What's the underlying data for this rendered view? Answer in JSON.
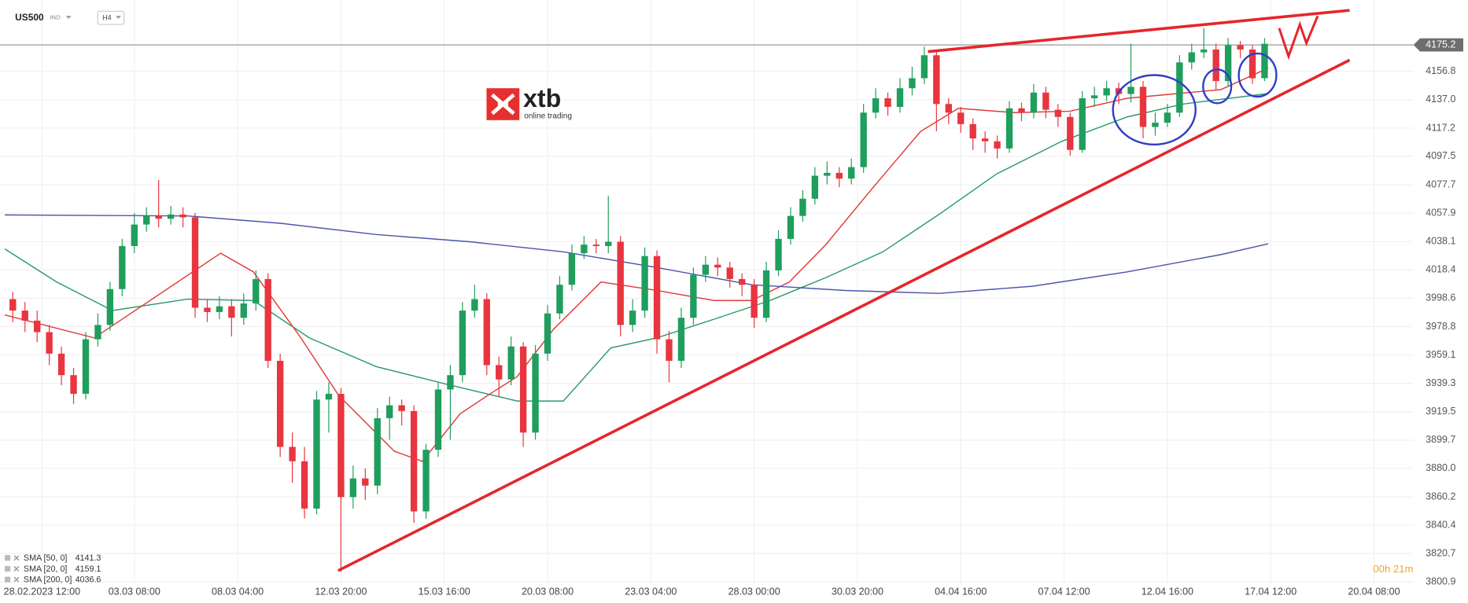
{
  "chart_data": {
    "type": "candlestick",
    "symbol": "US500",
    "market": "IND",
    "interval": "H4",
    "logo": "xtb",
    "logo_tagline": "online trading",
    "timer": "00h 21m",
    "current_price": 4175.2,
    "up_color": "#1f9e5d",
    "down_color": "#e8353f",
    "grid": true,
    "open": [
      3998,
      3990,
      3983,
      3975,
      3960,
      3945,
      3932,
      3970,
      3980,
      4005,
      4035,
      4050,
      4056,
      4054,
      4057,
      4055,
      3992,
      3989,
      3993,
      3985,
      3995,
      4012,
      3955,
      3895,
      3885,
      3852,
      3928,
      3932,
      3860,
      3873,
      3868,
      3915,
      3924,
      3920,
      3850,
      3893,
      3935,
      3945,
      3990,
      3998,
      3952,
      3942,
      3965,
      3905,
      3960,
      3988,
      4008,
      4030,
      4036,
      4035,
      4038,
      3980,
      3990,
      4028,
      3970,
      3955,
      3985,
      4015,
      4022,
      4020,
      4012,
      4008,
      3985,
      4018,
      4040,
      4056,
      4068,
      4084,
      4086,
      4082,
      4090,
      4128,
      4138,
      4132,
      4145,
      4152,
      4168,
      4134,
      4128,
      4120,
      4110,
      4108,
      4103,
      4131,
      4128,
      4142,
      4130,
      4125,
      4102,
      4138,
      4140,
      4145,
      4141,
      4146,
      4118,
      4121,
      4128,
      4163,
      4170,
      4172,
      4150,
      4175,
      4172,
      4152
    ],
    "high": [
      4003,
      3996,
      3990,
      3980,
      3965,
      3950,
      3975,
      3988,
      4010,
      4040,
      4058,
      4062,
      4081,
      4063,
      4062,
      4058,
      3998,
      4000,
      3998,
      4002,
      4018,
      4016,
      3960,
      3905,
      3895,
      3934,
      3940,
      3936,
      3882,
      3880,
      3922,
      3930,
      3928,
      3924,
      3897,
      3940,
      3952,
      3996,
      4008,
      4002,
      3958,
      3972,
      3968,
      3966,
      3994,
      4014,
      4036,
      4042,
      4040,
      4070,
      4042,
      3998,
      4034,
      4032,
      3976,
      3992,
      4020,
      4028,
      4027,
      4024,
      4016,
      4012,
      4024,
      4046,
      4062,
      4074,
      4090,
      4094,
      4090,
      4096,
      4134,
      4145,
      4142,
      4152,
      4160,
      4174,
      4171,
      4138,
      4132,
      4124,
      4115,
      4112,
      4136,
      4135,
      4148,
      4146,
      4134,
      4128,
      4143,
      4146,
      4150,
      4149,
      4176,
      4150,
      4128,
      4134,
      4168,
      4176,
      4187,
      4176,
      4180,
      4178,
      4175,
      4180
    ],
    "low": [
      3982,
      3975,
      3968,
      3952,
      3938,
      3925,
      3928,
      3965,
      3976,
      4000,
      4030,
      4045,
      4048,
      4050,
      4048,
      3985,
      3982,
      3984,
      3972,
      3980,
      3990,
      3950,
      3888,
      3870,
      3845,
      3848,
      3905,
      3808,
      3852,
      3858,
      3862,
      3900,
      3910,
      3842,
      3845,
      3888,
      3900,
      3940,
      3985,
      3945,
      3930,
      3938,
      3895,
      3900,
      3955,
      3984,
      4004,
      4026,
      4030,
      4030,
      3972,
      3975,
      3985,
      3960,
      3940,
      3950,
      3980,
      4010,
      4014,
      4006,
      4000,
      3978,
      3982,
      4014,
      4036,
      4052,
      4064,
      4078,
      4076,
      4078,
      4086,
      4124,
      4126,
      4128,
      4140,
      4148,
      4115,
      4120,
      4114,
      4102,
      4100,
      4096,
      4100,
      4122,
      4124,
      4124,
      4118,
      4098,
      4100,
      4132,
      4136,
      4134,
      4135,
      4110,
      4112,
      4118,
      4125,
      4158,
      4166,
      4144,
      4146,
      4166,
      4148,
      4150
    ],
    "close": [
      3990,
      3983,
      3975,
      3960,
      3945,
      3932,
      3970,
      3980,
      4005,
      4035,
      4050,
      4056,
      4054,
      4057,
      4055,
      3992,
      3989,
      3993,
      3985,
      3995,
      4012,
      3955,
      3895,
      3885,
      3852,
      3928,
      3932,
      3860,
      3873,
      3868,
      3915,
      3924,
      3920,
      3850,
      3893,
      3935,
      3945,
      3990,
      3998,
      3952,
      3942,
      3965,
      3905,
      3960,
      3988,
      4008,
      4030,
      4036,
      4035,
      4038,
      3980,
      3990,
      4028,
      3970,
      3955,
      3985,
      4015,
      4022,
      4020,
      4012,
      4008,
      3985,
      4018,
      4040,
      4056,
      4068,
      4084,
      4086,
      4082,
      4090,
      4128,
      4138,
      4132,
      4145,
      4152,
      4168,
      4134,
      4128,
      4120,
      4110,
      4108,
      4103,
      4131,
      4128,
      4142,
      4130,
      4125,
      4102,
      4138,
      4140,
      4145,
      4141,
      4146,
      4118,
      4121,
      4128,
      4163,
      4170,
      4172,
      4150,
      4175,
      4172,
      4152,
      4176
    ],
    "series": [
      {
        "name": "SMA [50, 0]",
        "color": "#2a9a6a",
        "x": [
          -0.66,
          3.6,
          8.2,
          14.4,
          19.8,
          24.4,
          29.9,
          36.0,
          41.5,
          45.3,
          49.2,
          53.0,
          57.7,
          62.3,
          66.9,
          71.6,
          76.2,
          80.9,
          86.3,
          91.7,
          96.3,
          103.3
        ],
        "values": [
          4033,
          4010,
          3990,
          3998,
          3997,
          3971,
          3951,
          3938,
          3927,
          3927,
          3964,
          3971,
          3984,
          3997,
          4013,
          4031,
          4057,
          4085,
          4108,
          4125,
          4134,
          4141.3
        ]
      },
      {
        "name": "SMA [20, 0]",
        "color": "#e23a3a",
        "x": [
          -0.66,
          6.7,
          17.1,
          19.8,
          23.7,
          26.8,
          31.4,
          33.7,
          36.8,
          39.1,
          41.5,
          44.5,
          48.4,
          53.0,
          57.7,
          60.8,
          63.9,
          66.9,
          70.8,
          74.7,
          77.8,
          82.4,
          87.0,
          91.7,
          95.5,
          99.4,
          103.3
        ],
        "values": [
          3987,
          3971,
          4030,
          4017,
          3971,
          3931,
          3892,
          3885,
          3918,
          3931,
          3944,
          3977,
          4010,
          4004,
          3997,
          3997,
          4010,
          4036,
          4076,
          4115,
          4131,
          4128,
          4129,
          4138,
          4141,
          4144,
          4159.1
        ]
      },
      {
        "name": "SMA [200, 0]",
        "color": "#4c55a8",
        "x": [
          -0.66,
          14.4,
          22.1,
          29.9,
          37.6,
          45.3,
          53.0,
          60.8,
          68.5,
          76.2,
          83.9,
          91.7,
          99.4,
          103.3
        ],
        "values": [
          4056.7,
          4056,
          4050.8,
          4043,
          4038,
          4031,
          4020,
          4008,
          4004,
          4002,
          4007,
          4017,
          4029,
          4036.6
        ]
      }
    ],
    "xlim": [
      -1.05,
      115.25
    ],
    "xticks": [
      {
        "value": 2.4,
        "label": "28.02.2023 12:00"
      },
      {
        "value": 10,
        "label": "03.03 08:00"
      },
      {
        "value": 18.5,
        "label": "08.03 04:00"
      },
      {
        "value": 27,
        "label": "12.03 20:00"
      },
      {
        "value": 35.5,
        "label": "15.03 16:00"
      },
      {
        "value": 44,
        "label": "20.03 08:00"
      },
      {
        "value": 52.5,
        "label": "23.03 04:00"
      },
      {
        "value": 61,
        "label": "28.03 00:00"
      },
      {
        "value": 69.5,
        "label": "30.03 20:00"
      },
      {
        "value": 78,
        "label": "04.04 16:00"
      },
      {
        "value": 86.5,
        "label": "07.04 12:00"
      },
      {
        "value": 95,
        "label": "12.04 16:00"
      },
      {
        "value": 103.5,
        "label": "17.04 12:00"
      },
      {
        "value": 112,
        "label": "20.04 08:00"
      }
    ],
    "ylim": [
      3799.6,
      4206.5
    ],
    "yticks": [
      4156.8,
      {
        "value": 4137.0,
        "label": "4137.0"
      },
      4117.2,
      4097.5,
      4077.7,
      4057.9,
      4038.1,
      4018.4,
      3998.6,
      3978.8,
      3959.1,
      3939.3,
      3919.5,
      3899.7,
      {
        "value": 3880.0,
        "label": "3880.0"
      },
      3860.2,
      3840.4,
      3820.7,
      3800.9
    ]
  }
}
